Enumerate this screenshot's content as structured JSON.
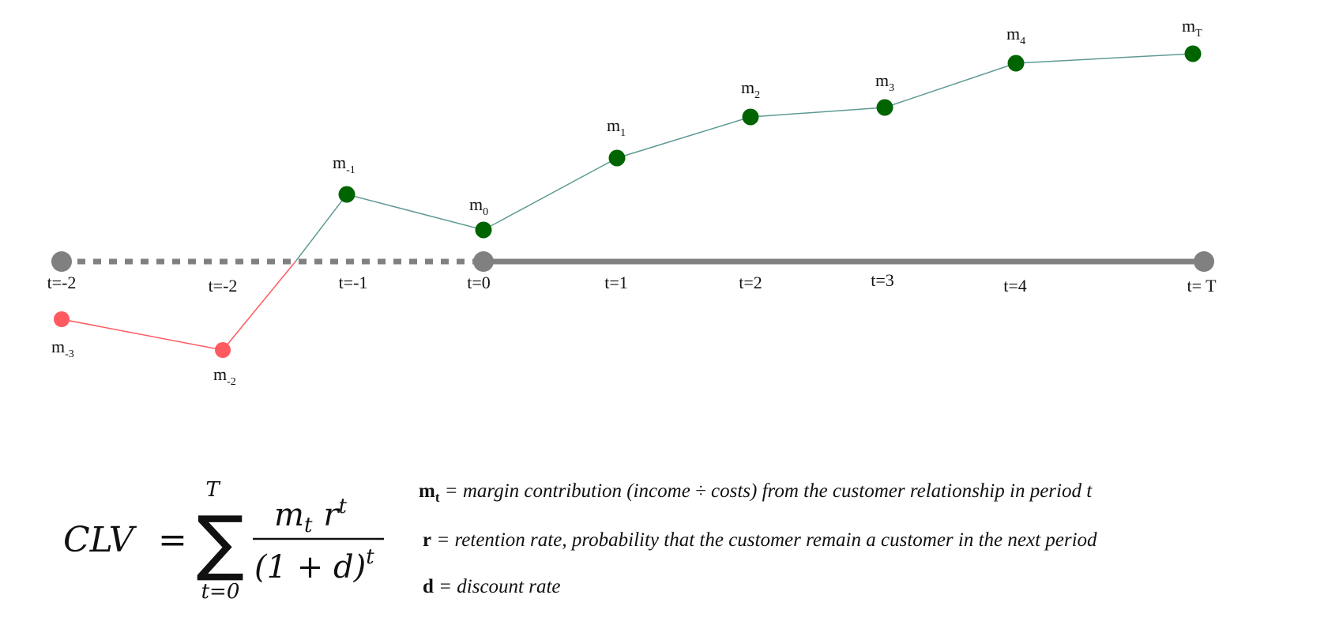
{
  "timeline": {
    "colors": {
      "axis": "#808080",
      "green": "#006400",
      "red": "#ff5a5f",
      "green_line": "#5f9a94",
      "red_line": "#ff5a5f"
    },
    "dashed_segment": [
      "t=-2",
      "t=-2",
      "t=-1"
    ],
    "ticks": [
      {
        "id": "tick-tm2a",
        "text": "t=-2"
      },
      {
        "id": "tick-tm2b",
        "text": "t=-2"
      },
      {
        "id": "tick-tm1",
        "text": "t=-1"
      },
      {
        "id": "tick-t0",
        "text": "t=0"
      },
      {
        "id": "tick-t1",
        "text": "t=1"
      },
      {
        "id": "tick-t2",
        "text": "t=2"
      },
      {
        "id": "tick-t3",
        "text": "t=3"
      },
      {
        "id": "tick-t4",
        "text": "t=4"
      },
      {
        "id": "tick-tT",
        "text": "t= T"
      }
    ],
    "margins": [
      {
        "id": "m-3",
        "base": "m",
        "sub": "-3",
        "group": "red"
      },
      {
        "id": "m-2",
        "base": "m",
        "sub": "-2",
        "group": "red"
      },
      {
        "id": "m-1",
        "base": "m",
        "sub": "-1",
        "group": "green"
      },
      {
        "id": "m0",
        "base": "m",
        "sub": "0",
        "group": "green"
      },
      {
        "id": "m1",
        "base": "m",
        "sub": "1",
        "group": "green"
      },
      {
        "id": "m2",
        "base": "m",
        "sub": "2",
        "group": "green"
      },
      {
        "id": "m3",
        "base": "m",
        "sub": "3",
        "group": "green"
      },
      {
        "id": "m4",
        "base": "m",
        "sub": "4",
        "group": "green"
      },
      {
        "id": "mT",
        "base": "m",
        "sub": "T",
        "group": "green"
      }
    ]
  },
  "formula": {
    "lhs": "CLV",
    "equals": "=",
    "sigma": "∑",
    "upper": "T",
    "lower": "t=0",
    "numerator_m": "m",
    "numerator_m_sub": "t",
    "numerator_r": "r",
    "numerator_r_sup": "t",
    "denominator": "(1 + d)",
    "denominator_sup": "t"
  },
  "definitions": [
    {
      "symbol": "m",
      "symbol_sub": "t",
      "text": " = margin contribution (income ÷ costs) from the customer relationship in period t"
    },
    {
      "symbol": "r",
      "symbol_sub": "",
      "text": " = retention rate, probability that the customer remain a customer in the next period"
    },
    {
      "symbol": "d",
      "symbol_sub": "",
      "text": " = discount rate"
    }
  ]
}
